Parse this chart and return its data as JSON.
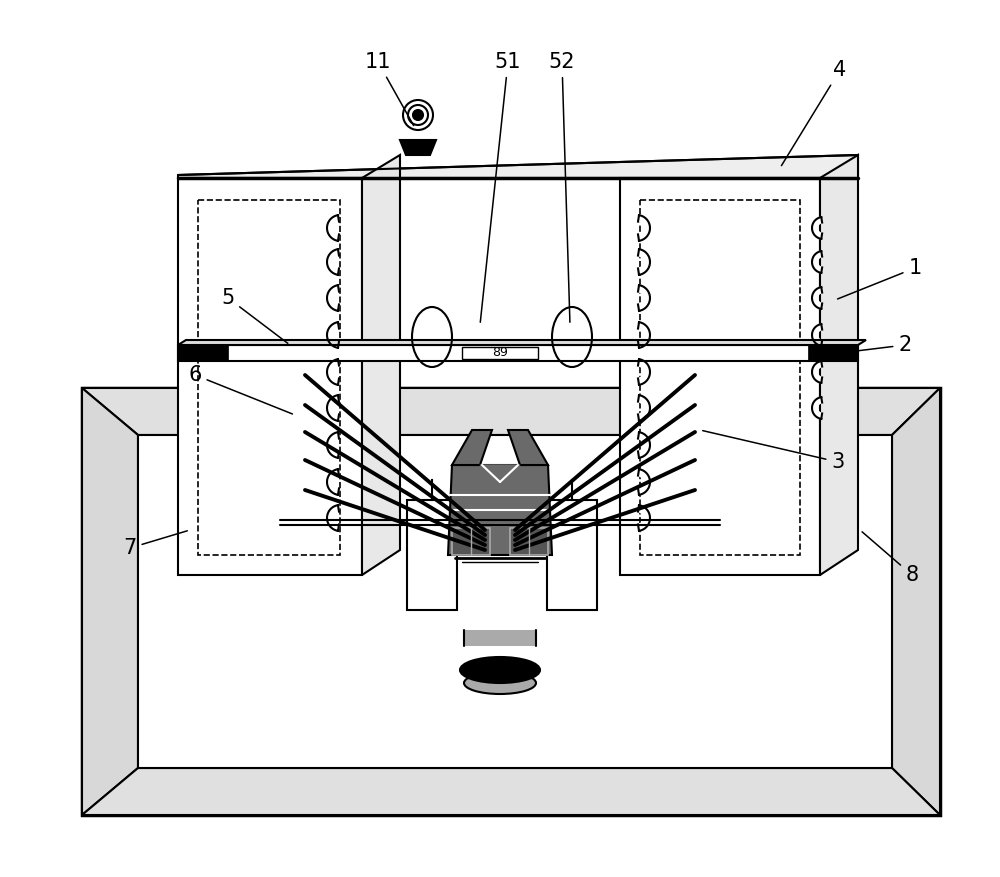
{
  "bg_color": "#ffffff",
  "line_color": "#000000",
  "lw_main": 1.5,
  "lw_thick": 2.5,
  "lw_rope": 2.8,
  "label_fontsize": 15,
  "annotation_lw": 1.1
}
